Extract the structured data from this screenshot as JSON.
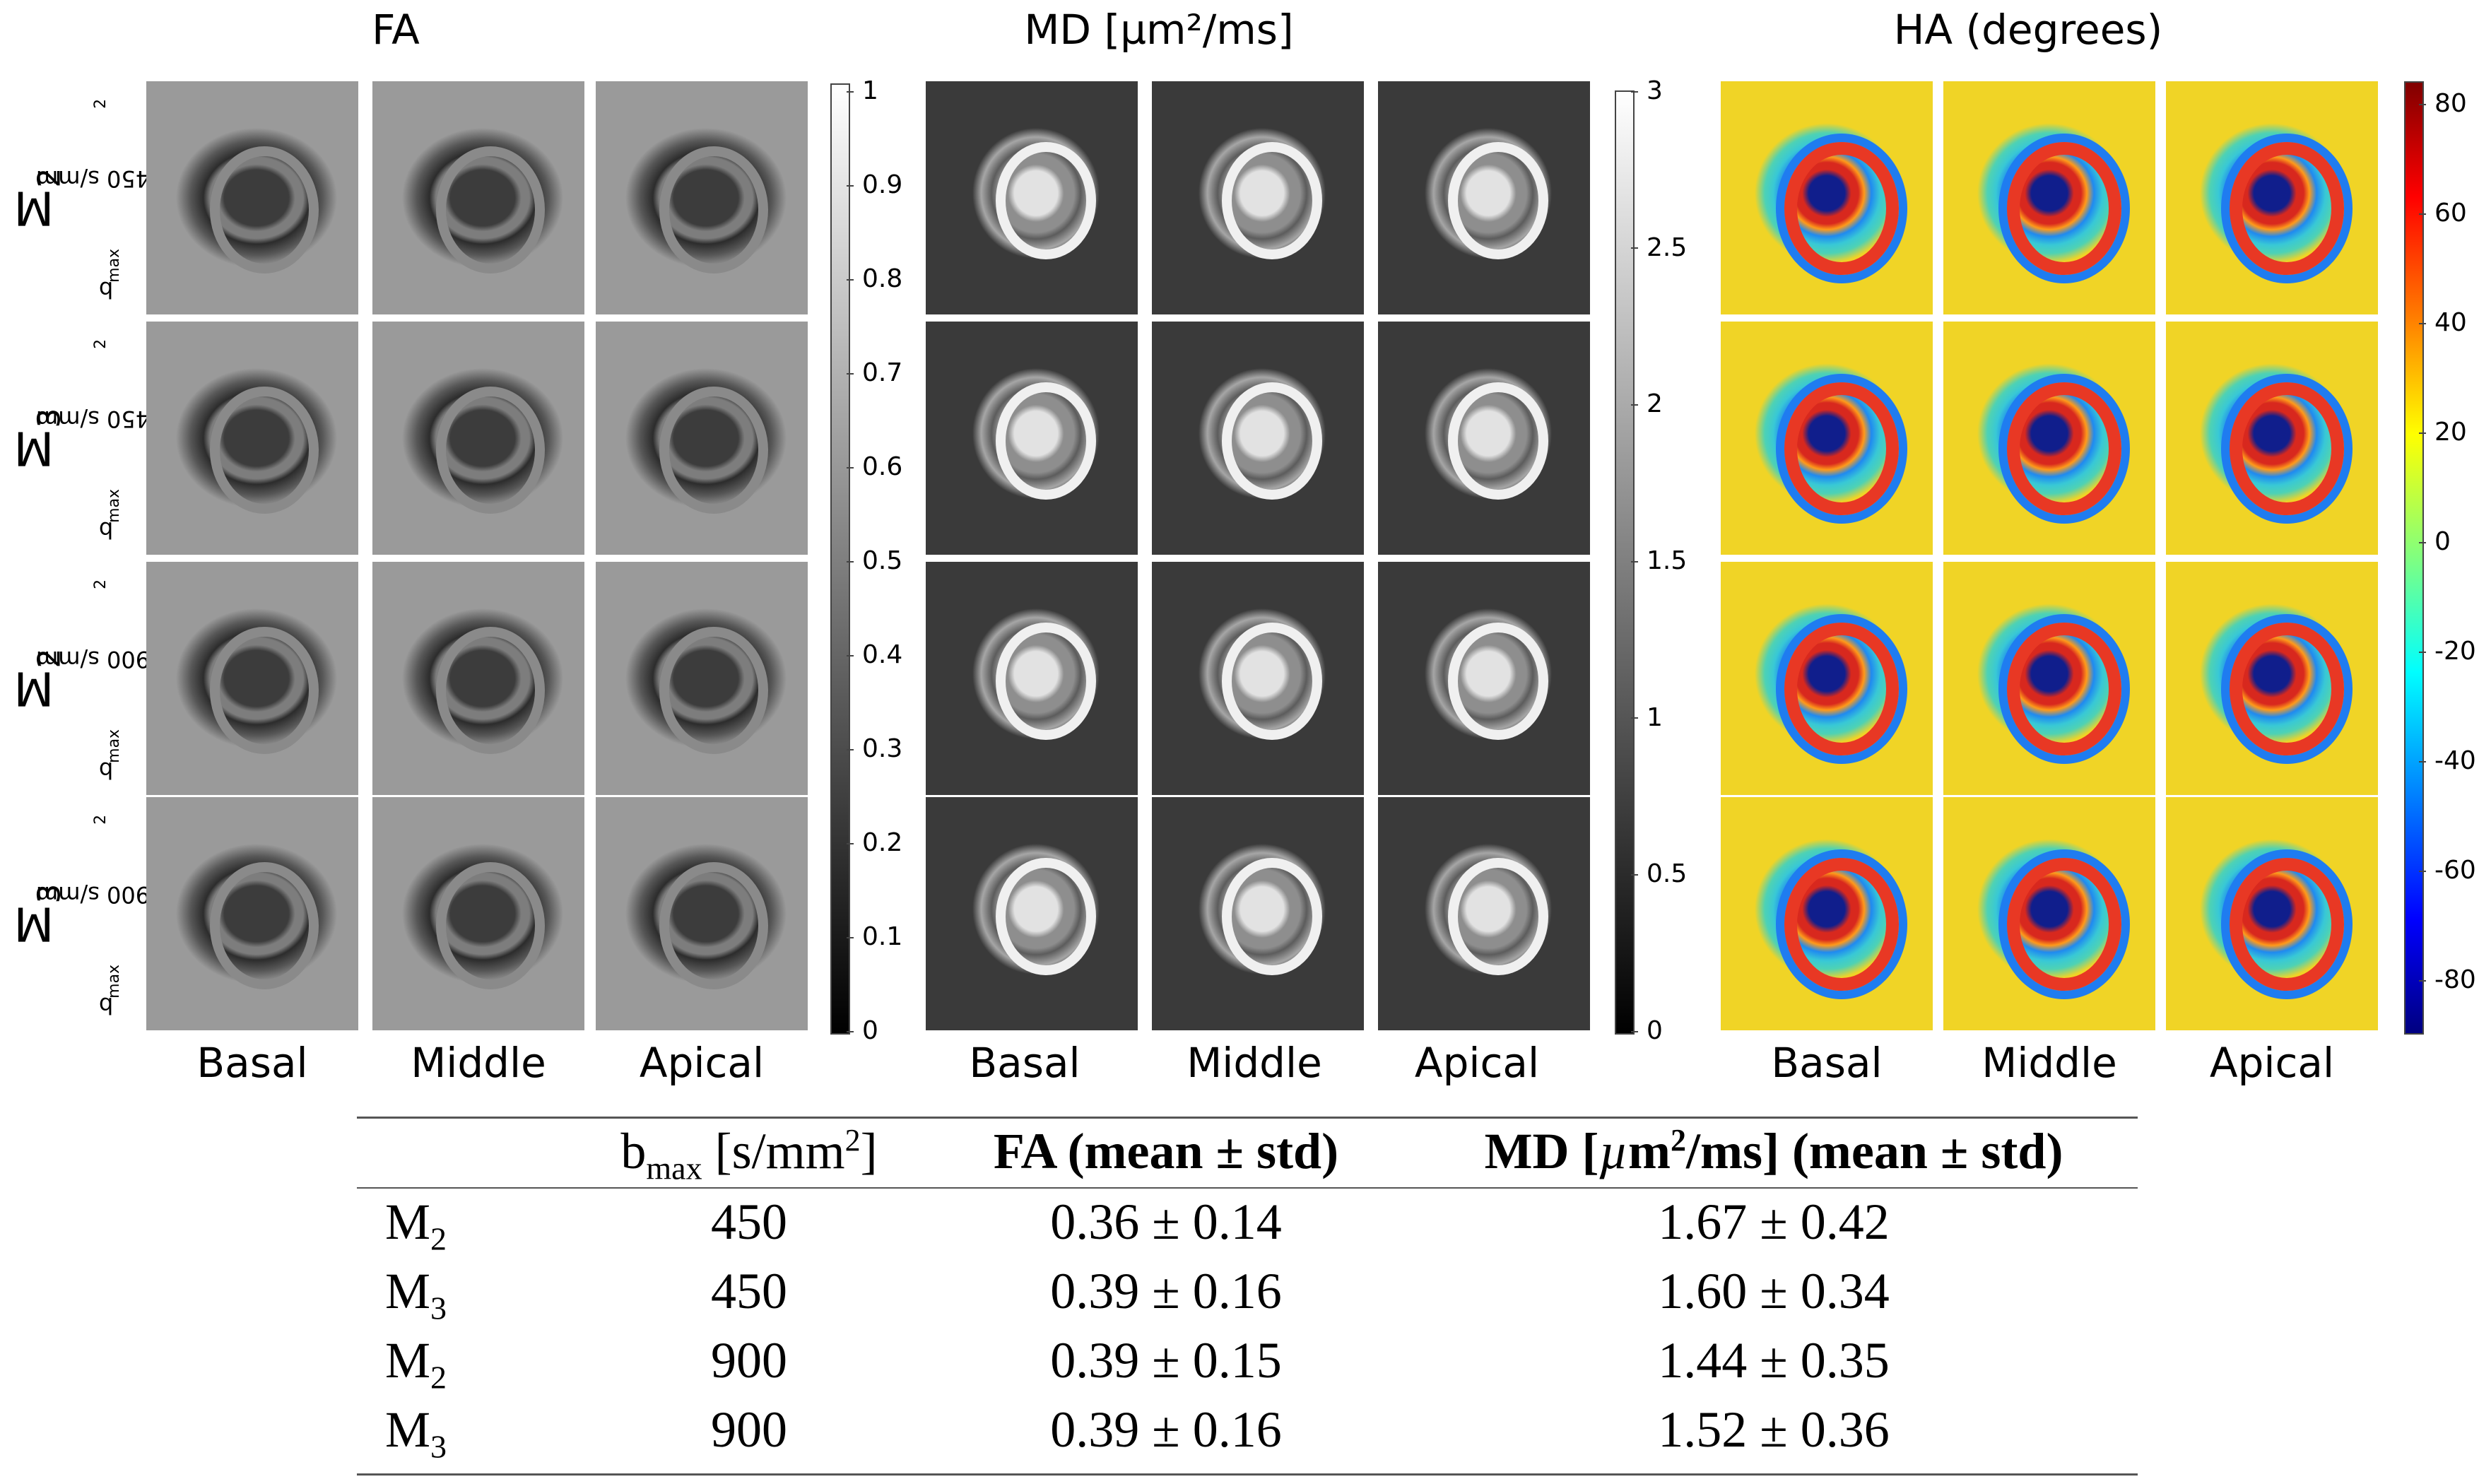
{
  "figure": {
    "panels": [
      {
        "title": "FA",
        "type": "grayscale",
        "colorbar_ticks": [
          "1",
          "0.9",
          "0.8",
          "0.7",
          "0.6",
          "0.5",
          "0.4",
          "0.3",
          "0.2",
          "0.1",
          "0"
        ],
        "col_labels": [
          "Basal",
          "Middle",
          "Apical"
        ]
      },
      {
        "title": "MD [µm²/ms]",
        "type": "grayscale",
        "colorbar_ticks": [
          "3",
          "2.5",
          "2",
          "1.5",
          "1",
          "0.5",
          "0"
        ],
        "col_labels": [
          "Basal",
          "Middle",
          "Apical"
        ]
      },
      {
        "title": "HA (degrees)",
        "type": "jet",
        "colorbar_ticks": [
          "80",
          "60",
          "40",
          "20",
          "0",
          "-20",
          "-40",
          "-60",
          "-80"
        ],
        "col_labels": [
          "Basal",
          "Middle",
          "Apical"
        ]
      }
    ],
    "rows": [
      {
        "model": "M",
        "model_sub": "2",
        "bmax_prefix": "b",
        "bmax_sub": "max",
        "bmax_text": " = 450 s/mm",
        "bmax_sup": "2"
      },
      {
        "model": "M",
        "model_sub": "3",
        "bmax_prefix": "b",
        "bmax_sub": "max",
        "bmax_text": " = 450 s/mm",
        "bmax_sup": "2"
      },
      {
        "model": "M",
        "model_sub": "2",
        "bmax_prefix": "b",
        "bmax_sub": "max",
        "bmax_text": " = 900 s/mm",
        "bmax_sup": "2"
      },
      {
        "model": "M",
        "model_sub": "3",
        "bmax_prefix": "b",
        "bmax_sub": "max",
        "bmax_text": " = 900 s/mm",
        "bmax_sup": "2"
      }
    ]
  },
  "table": {
    "header": {
      "bmax_prefix": "b",
      "bmax_sub": "max",
      "bmax_unit": " [s/mm",
      "bmax_unit_sup": "2",
      "bmax_close": "]",
      "fa": "FA (mean ± std)",
      "md_prefix": "MD [",
      "md_mu": "µ",
      "md_unit": "m",
      "md_sup": "2",
      "md_suffix": "/ms] (mean ± std)"
    },
    "rows": [
      {
        "model": "M",
        "model_sub": "2",
        "bmax": "450",
        "fa": "0.36 ± 0.14",
        "md": "1.67 ± 0.42"
      },
      {
        "model": "M",
        "model_sub": "3",
        "bmax": "450",
        "fa": "0.39 ± 0.16",
        "md": "1.60 ± 0.34"
      },
      {
        "model": "M",
        "model_sub": "2",
        "bmax": "900",
        "fa": "0.39 ± 0.15",
        "md": "1.44 ± 0.35"
      },
      {
        "model": "M",
        "model_sub": "3",
        "bmax": "900",
        "fa": "0.39 ± 0.16",
        "md": "1.52 ± 0.36"
      }
    ]
  }
}
